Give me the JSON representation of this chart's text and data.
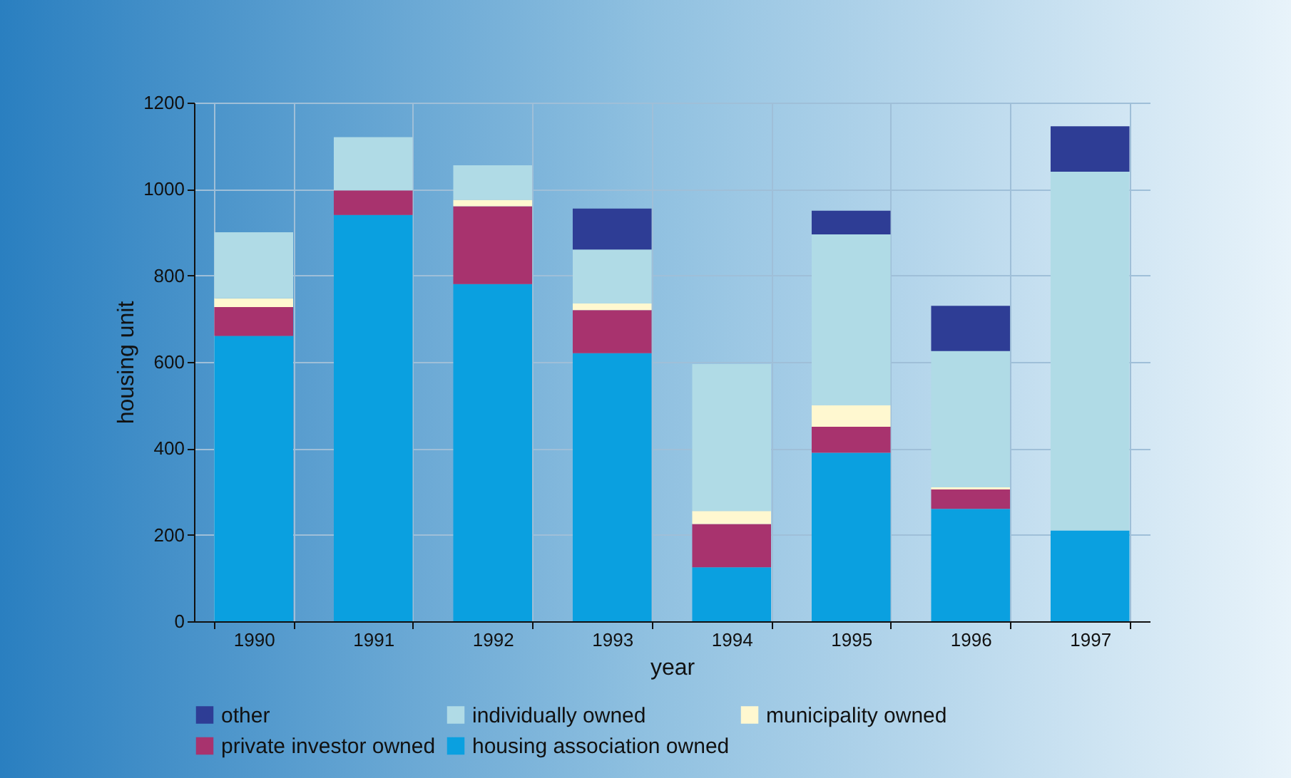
{
  "chart_data": {
    "type": "bar",
    "stacked": true,
    "xlabel": "year",
    "ylabel": "housing unit",
    "categories": [
      "1990",
      "1991",
      "1992",
      "1993",
      "1994",
      "1995",
      "1996",
      "1997"
    ],
    "series": [
      {
        "name": "housing association owned",
        "color": "#0aa0e0",
        "values": [
          660,
          940,
          780,
          620,
          125,
          390,
          260,
          210
        ]
      },
      {
        "name": "private investor owned",
        "color": "#a8336e",
        "values": [
          67,
          57,
          180,
          100,
          100,
          60,
          45,
          0
        ]
      },
      {
        "name": "municipality owned",
        "color": "#fff8d0",
        "values": [
          20,
          0,
          15,
          15,
          30,
          50,
          5,
          0
        ]
      },
      {
        "name": "individually owned",
        "color": "#b0dbe6",
        "values": [
          153,
          123,
          80,
          125,
          340,
          395,
          315,
          830
        ]
      },
      {
        "name": "other",
        "color": "#2e3d95",
        "values": [
          0,
          0,
          0,
          95,
          0,
          55,
          105,
          105
        ]
      }
    ],
    "ylim": [
      0,
      1200
    ],
    "yticks": [
      0,
      200,
      400,
      600,
      800,
      1000,
      1200
    ],
    "grid": true,
    "legend": "bottom"
  }
}
